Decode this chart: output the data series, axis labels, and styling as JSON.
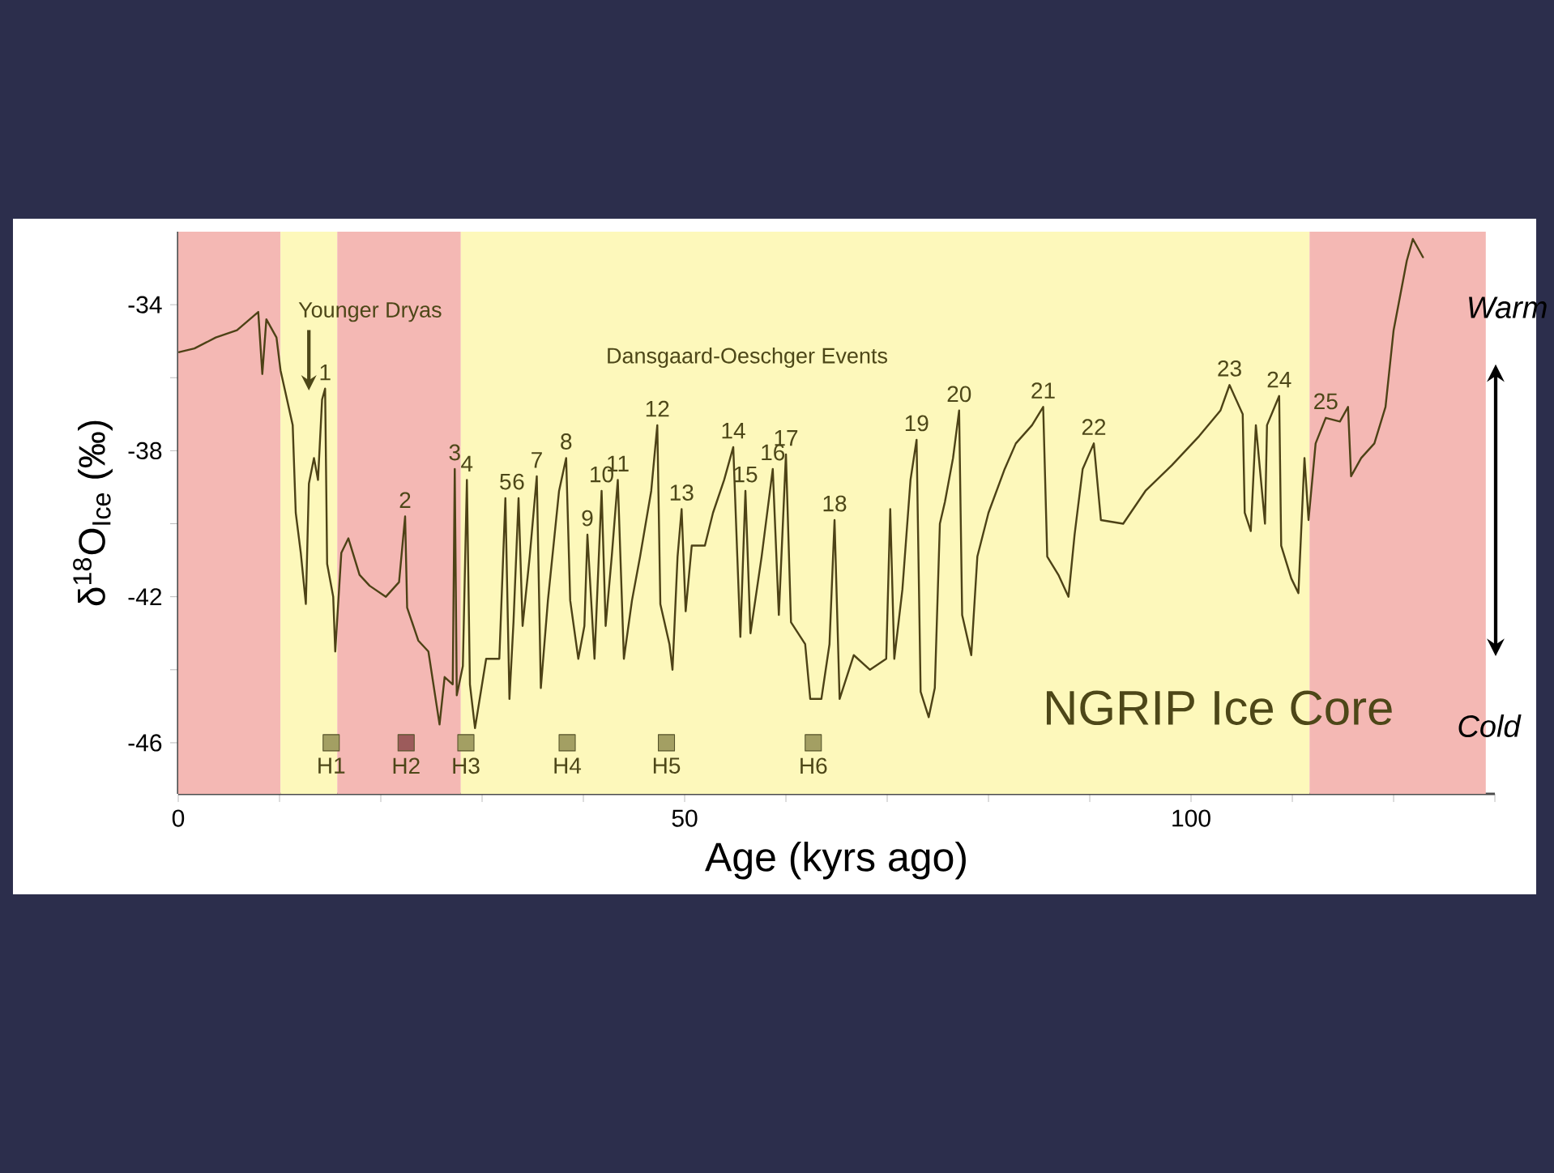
{
  "chart_data": {
    "type": "line",
    "xlabel": "Age (kyrs ago)",
    "ylabel": "δ$^{18}$O$_{Ice}$ (‰)",
    "xlim": [
      0,
      130
    ],
    "ylim": [
      -47.4,
      -32
    ],
    "xticks": [
      0,
      {
        "value": 10,
        "label": null
      },
      {
        "value": 20,
        "label": null
      },
      {
        "value": 30,
        "label": null
      },
      {
        "value": 40,
        "label": null
      },
      50,
      {
        "value": 60,
        "label": null
      },
      {
        "value": 70,
        "label": null
      },
      {
        "value": 80,
        "label": null
      },
      {
        "value": 90,
        "label": null
      },
      100,
      {
        "value": 110,
        "label": null
      },
      {
        "value": 120,
        "label": null
      },
      {
        "value": 130,
        "label": null
      }
    ],
    "yticks": [
      -46,
      {
        "value": -44,
        "label": null
      },
      -42,
      {
        "value": -40,
        "label": null
      },
      -38,
      {
        "value": -36,
        "label": null
      },
      -34
    ],
    "bands": [
      {
        "axis": "x",
        "from": 0,
        "to": 10.1,
        "color": "#f4b8b4"
      },
      {
        "axis": "x",
        "from": 10.1,
        "to": 15.7,
        "color": "#fdf8bb"
      },
      {
        "axis": "x",
        "from": 15.7,
        "to": 27.9,
        "color": "#f4b8b4"
      },
      {
        "axis": "x",
        "from": 27.9,
        "to": 111.7,
        "color": "#fdf8bb"
      },
      {
        "axis": "x",
        "from": 111.7,
        "to": 129.1,
        "color": "#f4b8b4"
      }
    ],
    "series": [
      {
        "color": "#4d4216",
        "x": [
          0.1,
          1.6,
          3.7,
          5.8,
          7.9,
          8.3,
          8.7,
          9.7,
          10.1,
          10.5,
          11.3,
          11.6,
          12.1,
          12.6,
          12.9,
          13.4,
          13.8,
          14.2,
          14.5,
          14.7,
          15.3,
          15.5,
          16.1,
          16.8,
          17.9,
          18.9,
          20.5,
          21.8,
          22.4,
          22.6,
          23.7,
          24.7,
          25.8,
          26.3,
          27.1,
          27.3,
          27.5,
          28.1,
          28.5,
          28.8,
          29.3,
          30.4,
          31.7,
          32.3,
          32.7,
          33.1,
          33.6,
          34.0,
          34.7,
          35.4,
          35.8,
          36.5,
          37.6,
          38.3,
          38.7,
          39.5,
          40.1,
          40.4,
          41.1,
          41.8,
          42.2,
          42.8,
          43.4,
          44.0,
          44.8,
          45.6,
          46.7,
          47.3,
          47.6,
          48.5,
          48.8,
          49.3,
          49.7,
          50.1,
          50.7,
          52.0,
          52.8,
          53.9,
          54.8,
          55.2,
          55.5,
          56.0,
          56.5,
          57.6,
          58.7,
          59.3,
          60.0,
          60.5,
          61.9,
          62.4,
          63.5,
          64.3,
          64.8,
          65.3,
          66.7,
          68.3,
          69.9,
          70.3,
          70.7,
          71.5,
          72.3,
          72.9,
          73.3,
          74.1,
          74.7,
          75.2,
          75.7,
          76.5,
          77.1,
          77.4,
          78.3,
          78.9,
          80.0,
          81.6,
          82.7,
          84.3,
          85.4,
          85.8,
          86.9,
          87.9,
          88.5,
          89.3,
          90.4,
          91.1,
          93.3,
          95.5,
          98.1,
          100.8,
          102.9,
          103.8,
          105.1,
          105.3,
          105.9,
          106.4,
          107.3,
          107.5,
          108.7,
          108.9,
          109.9,
          110.6,
          111.2,
          111.6,
          112.3,
          113.3,
          114.7,
          115.5,
          115.8,
          116.8,
          118.1,
          119.2,
          120.0,
          121.3,
          121.9,
          122.9
        ],
        "values": [
          -35.3,
          -35.2,
          -34.9,
          -34.7,
          -34.2,
          -35.9,
          -34.4,
          -34.9,
          -35.8,
          -36.3,
          -37.3,
          -39.7,
          -40.8,
          -42.2,
          -38.9,
          -38.2,
          -38.8,
          -36.6,
          -36.3,
          -41.1,
          -42.0,
          -43.5,
          -40.8,
          -40.4,
          -41.4,
          -41.7,
          -42.0,
          -41.6,
          -39.8,
          -42.3,
          -43.2,
          -43.5,
          -45.5,
          -44.2,
          -44.4,
          -38.5,
          -44.7,
          -43.9,
          -38.8,
          -44.4,
          -45.6,
          -43.7,
          -43.7,
          -39.3,
          -44.8,
          -42.7,
          -39.3,
          -42.8,
          -40.9,
          -38.7,
          -44.5,
          -42.1,
          -39.1,
          -38.2,
          -42.1,
          -43.7,
          -42.8,
          -40.3,
          -43.7,
          -39.1,
          -42.8,
          -40.9,
          -38.8,
          -43.7,
          -42.1,
          -40.9,
          -39.1,
          -37.3,
          -42.2,
          -43.3,
          -44.0,
          -40.9,
          -39.6,
          -42.4,
          -40.6,
          -40.6,
          -39.7,
          -38.8,
          -37.9,
          -40.9,
          -43.1,
          -39.1,
          -43.0,
          -40.9,
          -38.5,
          -42.5,
          -38.1,
          -42.7,
          -43.3,
          -44.8,
          -44.8,
          -43.3,
          -39.9,
          -44.8,
          -43.6,
          -44.0,
          -43.7,
          -39.6,
          -43.7,
          -41.8,
          -38.8,
          -37.7,
          -44.6,
          -45.3,
          -44.5,
          -40.0,
          -39.4,
          -38.2,
          -36.9,
          -42.5,
          -43.6,
          -40.9,
          -39.7,
          -38.5,
          -37.8,
          -37.3,
          -36.8,
          -40.9,
          -41.4,
          -42.0,
          -40.3,
          -38.5,
          -37.8,
          -39.9,
          -40.0,
          -39.1,
          -38.4,
          -37.6,
          -36.9,
          -36.2,
          -37.0,
          -39.7,
          -40.2,
          -37.3,
          -40.0,
          -37.3,
          -36.5,
          -40.6,
          -41.5,
          -41.9,
          -38.2,
          -39.9,
          -37.8,
          -37.1,
          -37.2,
          -36.8,
          -38.7,
          -38.2,
          -37.8,
          -36.8,
          -34.7,
          -32.8,
          -32.2,
          -32.7
        ]
      },
      {
        "type": "scatter",
        "marker": "square",
        "x": [
          15.1,
          22.5,
          28.4,
          38.4,
          48.2,
          62.7
        ],
        "values": [
          -46,
          -46,
          -46,
          -46,
          -46,
          -46
        ],
        "colors": [
          "#a39f63",
          "#9c5b5b",
          "#a39f63",
          "#a39f63",
          "#a39f63",
          "#a39f63"
        ]
      }
    ],
    "annotations": [
      "Younger Dryas",
      "Dansgaard-Oeschger Events",
      {
        "text": "1",
        "x": 14.5,
        "y": -36.3
      },
      {
        "text": "2",
        "x": 22.4,
        "y": -39.8
      },
      {
        "text": "3",
        "x": 27.3,
        "y": -38.5
      },
      {
        "text": "4",
        "x": 28.5,
        "y": -38.8
      },
      {
        "text": "5",
        "x": 32.3,
        "y": -39.3
      },
      {
        "text": "6",
        "x": 33.6,
        "y": -39.3
      },
      {
        "text": "7",
        "x": 35.4,
        "y": -38.7
      },
      {
        "text": "8",
        "x": 38.3,
        "y": -38.2
      },
      {
        "text": "9",
        "x": 40.4,
        "y": -40.3
      },
      {
        "text": "10",
        "x": 41.8,
        "y": -39.1
      },
      {
        "text": "11",
        "x": 43.4,
        "y": -38.8
      },
      {
        "text": "12",
        "x": 47.3,
        "y": -37.3
      },
      {
        "text": "13",
        "x": 49.7,
        "y": -39.6
      },
      {
        "text": "14",
        "x": 54.8,
        "y": -37.9
      },
      {
        "text": "15",
        "x": 56.0,
        "y": -39.1
      },
      {
        "text": "16",
        "x": 58.7,
        "y": -38.5
      },
      {
        "text": "17",
        "x": 60.0,
        "y": -38.1
      },
      {
        "text": "18",
        "x": 64.8,
        "y": -39.9
      },
      {
        "text": "19",
        "x": 72.9,
        "y": -37.7
      },
      {
        "text": "20",
        "x": 77.1,
        "y": -36.9
      },
      {
        "text": "21",
        "x": 85.4,
        "y": -36.8
      },
      {
        "text": "22",
        "x": 90.4,
        "y": -37.8
      },
      {
        "text": "23",
        "x": 103.8,
        "y": -36.2
      },
      {
        "text": "24",
        "x": 108.7,
        "y": -36.5
      },
      {
        "text": "25",
        "x": 113.3,
        "y": -37.1
      },
      {
        "text": "H1",
        "x": 15.1,
        "y": -46
      },
      {
        "text": "H2",
        "x": 22.5,
        "y": -46
      },
      {
        "text": "H3",
        "x": 28.4,
        "y": -46
      },
      {
        "text": "H4",
        "x": 38.4,
        "y": -46
      },
      {
        "text": "H5",
        "x": 48.2,
        "y": -46
      },
      {
        "text": "H6",
        "x": 62.7,
        "y": -46
      },
      "NGRIP Ice Core",
      "Warm",
      "Cold"
    ]
  }
}
